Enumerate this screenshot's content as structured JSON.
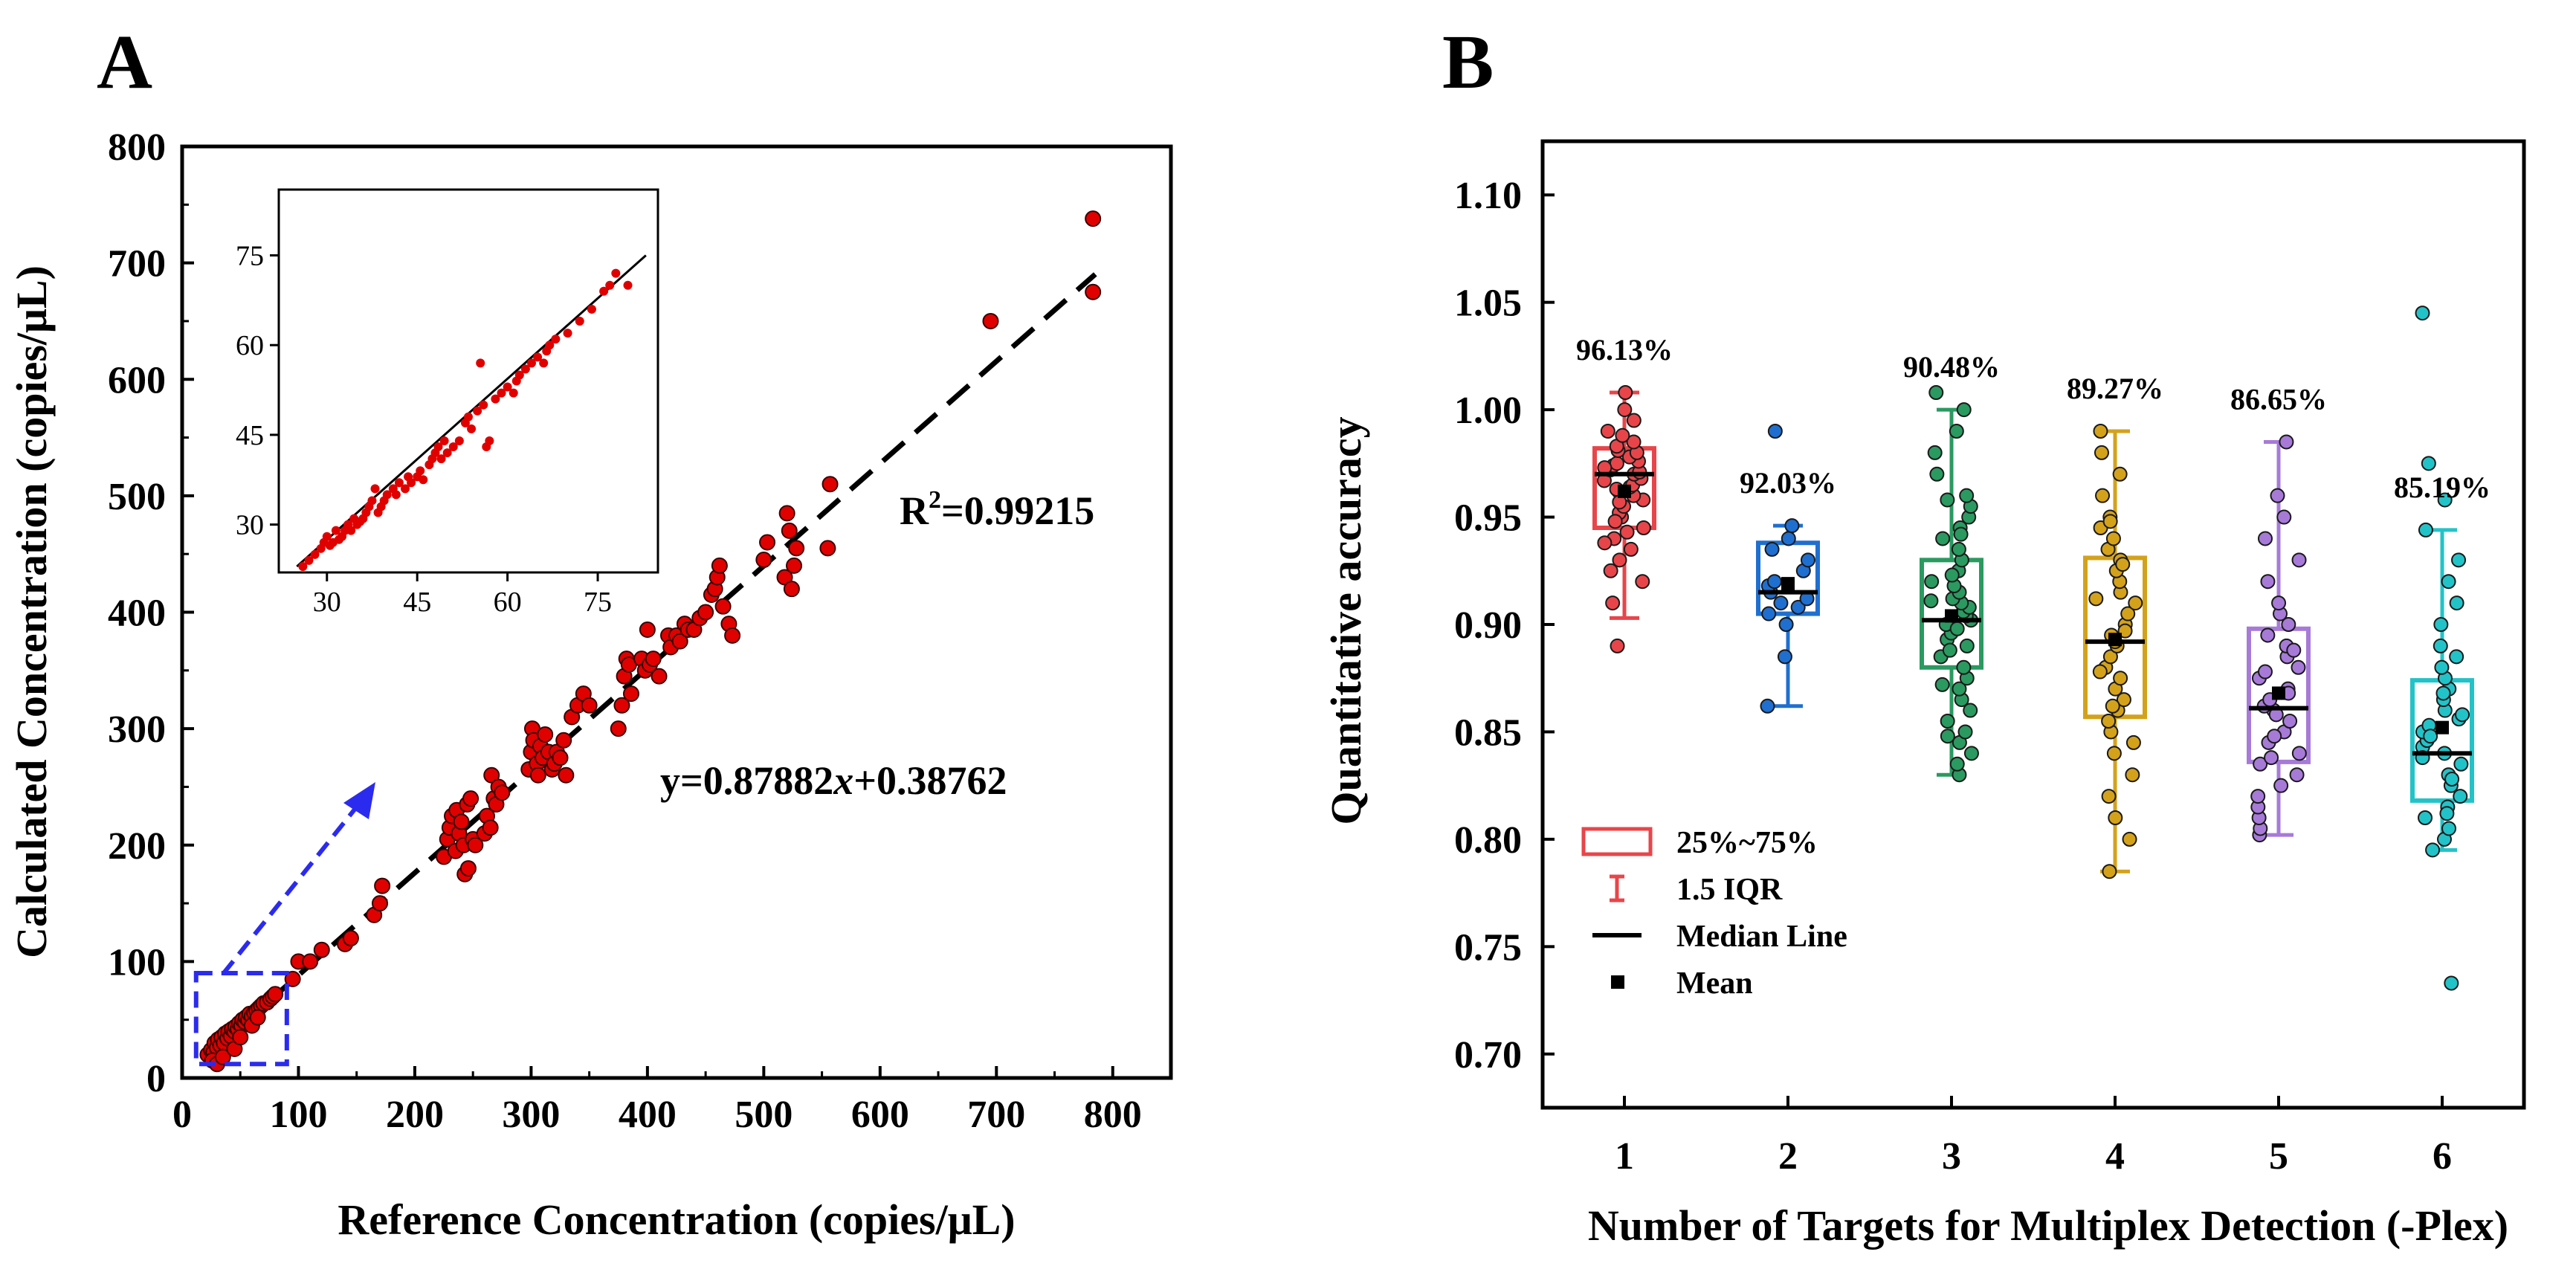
{
  "chart_data": [
    {
      "panel": "A",
      "type": "scatter",
      "xlabel": "Reference Concentration (copies/μL)",
      "ylabel": "Calculated Concentration (copies/μL)",
      "xlim": [
        0,
        850
      ],
      "ylim": [
        0,
        800
      ],
      "xticks": [
        0,
        100,
        200,
        300,
        400,
        500,
        600,
        700,
        800
      ],
      "yticks": [
        0,
        100,
        200,
        300,
        400,
        500,
        600,
        700,
        800
      ],
      "fit": {
        "slope": 0.87882,
        "intercept": 0.38762,
        "style": "dashed"
      },
      "equation": "y=0.87882x+0.38762",
      "r2_text": "R²=0.99215",
      "points": [
        [
          22,
          20
        ],
        [
          25,
          24
        ],
        [
          27,
          22
        ],
        [
          28,
          30
        ],
        [
          30,
          26
        ],
        [
          31,
          33
        ],
        [
          33,
          28
        ],
        [
          34,
          35
        ],
        [
          36,
          30
        ],
        [
          37,
          38
        ],
        [
          39,
          34
        ],
        [
          40,
          40
        ],
        [
          42,
          36
        ],
        [
          43,
          42
        ],
        [
          45,
          40
        ],
        [
          46,
          44
        ],
        [
          48,
          42
        ],
        [
          49,
          47
        ],
        [
          51,
          45
        ],
        [
          52,
          50
        ],
        [
          54,
          48
        ],
        [
          55,
          52
        ],
        [
          57,
          50
        ],
        [
          58,
          55
        ],
        [
          60,
          53
        ],
        [
          62,
          56
        ],
        [
          64,
          58
        ],
        [
          66,
          60
        ],
        [
          68,
          62
        ],
        [
          70,
          64
        ],
        [
          73,
          65
        ],
        [
          76,
          68
        ],
        [
          78,
          70
        ],
        [
          80,
          72
        ],
        [
          26,
          15
        ],
        [
          30,
          12
        ],
        [
          35,
          18
        ],
        [
          45,
          25
        ],
        [
          50,
          35
        ],
        [
          60,
          45
        ],
        [
          65,
          52
        ],
        [
          95,
          85
        ],
        [
          100,
          100
        ],
        [
          110,
          100
        ],
        [
          120,
          110
        ],
        [
          140,
          115
        ],
        [
          145,
          120
        ],
        [
          165,
          140
        ],
        [
          170,
          150
        ],
        [
          172,
          165
        ],
        [
          225,
          190
        ],
        [
          228,
          205
        ],
        [
          230,
          215
        ],
        [
          232,
          225
        ],
        [
          235,
          195
        ],
        [
          236,
          230
        ],
        [
          238,
          210
        ],
        [
          240,
          220
        ],
        [
          242,
          200
        ],
        [
          243,
          175
        ],
        [
          245,
          235
        ],
        [
          246,
          180
        ],
        [
          248,
          240
        ],
        [
          250,
          205
        ],
        [
          252,
          200
        ],
        [
          260,
          210
        ],
        [
          262,
          225
        ],
        [
          265,
          215
        ],
        [
          266,
          260
        ],
        [
          268,
          240
        ],
        [
          270,
          235
        ],
        [
          272,
          250
        ],
        [
          275,
          245
        ],
        [
          298,
          265
        ],
        [
          300,
          280
        ],
        [
          301,
          300
        ],
        [
          302,
          290
        ],
        [
          305,
          270
        ],
        [
          306,
          260
        ],
        [
          308,
          285
        ],
        [
          310,
          275
        ],
        [
          312,
          295
        ],
        [
          315,
          280
        ],
        [
          318,
          265
        ],
        [
          320,
          270
        ],
        [
          322,
          280
        ],
        [
          325,
          275
        ],
        [
          328,
          290
        ],
        [
          330,
          260
        ],
        [
          335,
          310
        ],
        [
          340,
          320
        ],
        [
          345,
          330
        ],
        [
          350,
          320
        ],
        [
          375,
          300
        ],
        [
          378,
          320
        ],
        [
          380,
          345
        ],
        [
          382,
          360
        ],
        [
          384,
          355
        ],
        [
          386,
          330
        ],
        [
          395,
          360
        ],
        [
          398,
          350
        ],
        [
          400,
          385
        ],
        [
          402,
          355
        ],
        [
          405,
          360
        ],
        [
          410,
          345
        ],
        [
          418,
          380
        ],
        [
          420,
          370
        ],
        [
          425,
          380
        ],
        [
          428,
          375
        ],
        [
          432,
          390
        ],
        [
          435,
          385
        ],
        [
          440,
          385
        ],
        [
          445,
          395
        ],
        [
          450,
          400
        ],
        [
          455,
          415
        ],
        [
          458,
          420
        ],
        [
          460,
          430
        ],
        [
          462,
          440
        ],
        [
          465,
          405
        ],
        [
          470,
          390
        ],
        [
          473,
          380
        ],
        [
          500,
          445
        ],
        [
          503,
          460
        ],
        [
          518,
          430
        ],
        [
          520,
          485
        ],
        [
          522,
          470
        ],
        [
          524,
          420
        ],
        [
          526,
          440
        ],
        [
          528,
          455
        ],
        [
          555,
          455
        ],
        [
          557,
          510
        ],
        [
          695,
          650
        ],
        [
          783,
          738
        ],
        [
          783,
          675
        ]
      ],
      "inset": {
        "xlim": [
          22,
          85
        ],
        "ylim": [
          22,
          86
        ],
        "xticks": [
          30,
          45,
          60,
          75
        ],
        "yticks": [
          30,
          45,
          60,
          75
        ],
        "points": [
          [
            26,
            23
          ],
          [
            27,
            24
          ],
          [
            28,
            25
          ],
          [
            29,
            26
          ],
          [
            29.5,
            27
          ],
          [
            30,
            28
          ],
          [
            30.5,
            26.5
          ],
          [
            31,
            27
          ],
          [
            31.5,
            29
          ],
          [
            32,
            27.5
          ],
          [
            32.5,
            28
          ],
          [
            33,
            29
          ],
          [
            33.5,
            30
          ],
          [
            34,
            29
          ],
          [
            34.5,
            31
          ],
          [
            35,
            30
          ],
          [
            35.5,
            30.5
          ],
          [
            36,
            31
          ],
          [
            36.5,
            32
          ],
          [
            37,
            33
          ],
          [
            37.5,
            34
          ],
          [
            38,
            36
          ],
          [
            38.5,
            32
          ],
          [
            39,
            33
          ],
          [
            39.5,
            34
          ],
          [
            40,
            35
          ],
          [
            41,
            36
          ],
          [
            41.5,
            35
          ],
          [
            42,
            37
          ],
          [
            43,
            36
          ],
          [
            43.5,
            38
          ],
          [
            44,
            37
          ],
          [
            45,
            38
          ],
          [
            45.5,
            39
          ],
          [
            46,
            37.5
          ],
          [
            47,
            40
          ],
          [
            47.5,
            41
          ],
          [
            48,
            42
          ],
          [
            48.5,
            43
          ],
          [
            49,
            41
          ],
          [
            49.5,
            44
          ],
          [
            50,
            42
          ],
          [
            51,
            43
          ],
          [
            52,
            44
          ],
          [
            53,
            47
          ],
          [
            53.5,
            48
          ],
          [
            54,
            46
          ],
          [
            55,
            49
          ],
          [
            55.5,
            57
          ],
          [
            56,
            50
          ],
          [
            56.5,
            43
          ],
          [
            57,
            44
          ],
          [
            58,
            51
          ],
          [
            59,
            52
          ],
          [
            60,
            53
          ],
          [
            61,
            52
          ],
          [
            61.5,
            54
          ],
          [
            62,
            55
          ],
          [
            63,
            56
          ],
          [
            64,
            57
          ],
          [
            65,
            58
          ],
          [
            66,
            57
          ],
          [
            66.5,
            59
          ],
          [
            67,
            60
          ],
          [
            68,
            61
          ],
          [
            70,
            62
          ],
          [
            72,
            64
          ],
          [
            74,
            66
          ],
          [
            76,
            69
          ],
          [
            77,
            70
          ],
          [
            78,
            72
          ],
          [
            80,
            70
          ]
        ],
        "fit": [
          [
            25,
            23
          ],
          [
            83,
            75
          ]
        ]
      },
      "zoom_box": {
        "x": [
          12,
          90
        ],
        "y": [
          12,
          90
        ]
      }
    },
    {
      "panel": "B",
      "type": "box",
      "xlabel": "Number of Targets for Multiplex Detection (-Plex)",
      "ylabel": "Quantitative accuracy",
      "ylim": [
        0.675,
        1.125
      ],
      "yticks": [
        "0.70",
        "0.75",
        "0.80",
        "0.85",
        "0.90",
        "0.95",
        "1.00",
        "1.05",
        "1.10"
      ],
      "categories": [
        "1",
        "2",
        "3",
        "4",
        "5",
        "6"
      ],
      "colors": [
        "#e8454a",
        "#1f6fd0",
        "#2a9a60",
        "#d4a21a",
        "#a77ad8",
        "#22c3c8"
      ],
      "percent_labels": [
        "96.13%",
        "92.03%",
        "90.48%",
        "89.27%",
        "86.65%",
        "85.19%"
      ],
      "boxes": [
        {
          "q1": 0.945,
          "median": 0.97,
          "q3": 0.982,
          "mean": 0.962,
          "whisker_low": 0.903,
          "whisker_high": 1.008,
          "points": [
            0.89,
            0.91,
            0.92,
            0.93,
            0.935,
            0.94,
            0.945,
            0.95,
            0.952,
            0.955,
            0.958,
            0.96,
            0.962,
            0.964,
            0.965,
            0.967,
            0.968,
            0.97,
            0.971,
            0.972,
            0.974,
            0.975,
            0.976,
            0.978,
            0.98,
            0.981,
            0.983,
            0.985,
            0.99,
            0.995,
            1.0,
            1.008,
            0.948,
            0.943,
            0.938,
            0.957,
            0.963,
            0.973,
            0.988,
            0.925
          ]
        },
        {
          "q1": 0.905,
          "median": 0.915,
          "q3": 0.938,
          "mean": 0.919,
          "whisker_low": 0.862,
          "whisker_high": 0.946,
          "points": [
            0.862,
            0.885,
            0.9,
            0.905,
            0.908,
            0.91,
            0.912,
            0.915,
            0.918,
            0.92,
            0.925,
            0.93,
            0.935,
            0.94,
            0.946,
            0.99
          ]
        },
        {
          "q1": 0.88,
          "median": 0.902,
          "q3": 0.93,
          "mean": 0.904,
          "whisker_low": 0.83,
          "whisker_high": 1.0,
          "points": [
            0.83,
            0.835,
            0.84,
            0.845,
            0.85,
            0.855,
            0.86,
            0.865,
            0.87,
            0.875,
            0.88,
            0.885,
            0.89,
            0.893,
            0.896,
            0.9,
            0.902,
            0.904,
            0.906,
            0.908,
            0.91,
            0.912,
            0.915,
            0.918,
            0.92,
            0.925,
            0.93,
            0.935,
            0.94,
            0.945,
            0.95,
            0.955,
            0.96,
            0.97,
            0.98,
            0.99,
            1.0,
            1.008,
            0.848,
            0.872,
            0.888,
            0.898,
            0.911,
            0.923,
            0.942,
            0.958
          ]
        },
        {
          "q1": 0.857,
          "median": 0.892,
          "q3": 0.931,
          "mean": 0.893,
          "whisker_low": 0.785,
          "whisker_high": 0.99,
          "points": [
            0.785,
            0.8,
            0.81,
            0.82,
            0.83,
            0.84,
            0.845,
            0.85,
            0.855,
            0.86,
            0.865,
            0.87,
            0.875,
            0.88,
            0.885,
            0.89,
            0.892,
            0.895,
            0.9,
            0.905,
            0.91,
            0.915,
            0.92,
            0.925,
            0.93,
            0.935,
            0.94,
            0.945,
            0.95,
            0.96,
            0.97,
            0.98,
            0.99,
            0.862,
            0.878,
            0.897,
            0.912,
            0.928,
            0.948
          ]
        },
        {
          "q1": 0.836,
          "median": 0.861,
          "q3": 0.898,
          "mean": 0.868,
          "whisker_low": 0.802,
          "whisker_high": 0.985,
          "points": [
            0.802,
            0.805,
            0.81,
            0.815,
            0.82,
            0.825,
            0.83,
            0.835,
            0.84,
            0.845,
            0.85,
            0.855,
            0.86,
            0.862,
            0.865,
            0.87,
            0.875,
            0.88,
            0.885,
            0.89,
            0.895,
            0.9,
            0.905,
            0.91,
            0.92,
            0.93,
            0.94,
            0.95,
            0.96,
            0.985,
            0.838,
            0.848,
            0.858,
            0.868,
            0.878,
            0.888
          ]
        },
        {
          "q1": 0.818,
          "median": 0.84,
          "q3": 0.874,
          "mean": 0.852,
          "whisker_low": 0.795,
          "whisker_high": 0.944,
          "points": [
            0.733,
            0.795,
            0.8,
            0.805,
            0.81,
            0.815,
            0.82,
            0.825,
            0.83,
            0.835,
            0.84,
            0.843,
            0.846,
            0.85,
            0.853,
            0.856,
            0.86,
            0.865,
            0.87,
            0.875,
            0.88,
            0.885,
            0.89,
            0.9,
            0.91,
            0.92,
            0.93,
            0.944,
            0.958,
            0.975,
            1.045,
            0.812,
            0.828,
            0.838,
            0.848,
            0.858,
            0.868
          ]
        }
      ],
      "legend": [
        {
          "label": "25%~75%",
          "symbol": "box"
        },
        {
          "label": "1.5 IQR",
          "symbol": "whisker"
        },
        {
          "label": "Median Line",
          "symbol": "line"
        },
        {
          "label": "Mean",
          "symbol": "square"
        }
      ]
    }
  ]
}
